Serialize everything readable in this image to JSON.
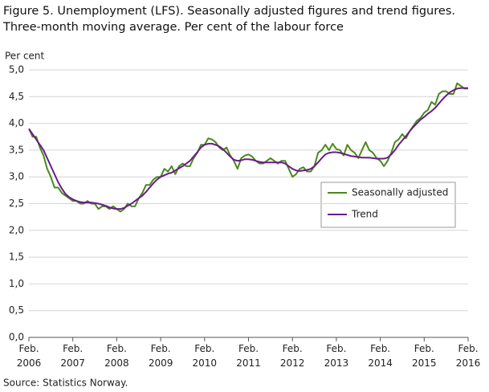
{
  "chart_data": {
    "type": "line",
    "title": [
      "Figure 5. Unemployment (LFS). Seasonally adjusted figures and trend figures.",
      "Three-month moving average. Per cent of the labour force"
    ],
    "y_label": "Per cent",
    "source": "Source: Statistics Norway.",
    "categories": [
      "Feb. 2006",
      null,
      null,
      null,
      null,
      null,
      null,
      null,
      null,
      null,
      null,
      null,
      "Feb. 2007",
      null,
      null,
      null,
      null,
      null,
      null,
      null,
      null,
      null,
      null,
      null,
      "Feb. 2008",
      null,
      null,
      null,
      null,
      null,
      null,
      null,
      null,
      null,
      null,
      null,
      "Feb. 2009",
      null,
      null,
      null,
      null,
      null,
      null,
      null,
      null,
      null,
      null,
      null,
      "Feb. 2010",
      null,
      null,
      null,
      null,
      null,
      null,
      null,
      null,
      null,
      null,
      null,
      "Feb. 2011",
      null,
      null,
      null,
      null,
      null,
      null,
      null,
      null,
      null,
      null,
      null,
      "Feb. 2012",
      null,
      null,
      null,
      null,
      null,
      null,
      null,
      null,
      null,
      null,
      null,
      "Feb. 2013",
      null,
      null,
      null,
      null,
      null,
      null,
      null,
      null,
      null,
      null,
      null,
      "Feb. 2014",
      null,
      null,
      null,
      null,
      null,
      null,
      null,
      null,
      null,
      null,
      null,
      "Feb. 2015",
      null,
      null,
      null,
      null,
      null,
      null,
      null,
      null,
      null,
      null,
      null,
      "Feb. 2016"
    ],
    "series": [
      {
        "name": "Seasonally adjusted",
        "color": "#4a8a1c",
        "values": [
          3.9,
          3.75,
          3.75,
          3.55,
          3.4,
          3.15,
          3.0,
          2.8,
          2.8,
          2.7,
          2.65,
          2.6,
          2.55,
          2.55,
          2.5,
          2.5,
          2.55,
          2.5,
          2.5,
          2.4,
          2.45,
          2.45,
          2.4,
          2.45,
          2.4,
          2.35,
          2.4,
          2.5,
          2.45,
          2.45,
          2.6,
          2.7,
          2.85,
          2.85,
          2.95,
          3.0,
          3.0,
          3.15,
          3.1,
          3.2,
          3.05,
          3.2,
          3.25,
          3.2,
          3.2,
          3.35,
          3.45,
          3.6,
          3.6,
          3.72,
          3.7,
          3.65,
          3.55,
          3.5,
          3.55,
          3.4,
          3.3,
          3.15,
          3.35,
          3.4,
          3.42,
          3.38,
          3.3,
          3.25,
          3.25,
          3.3,
          3.35,
          3.3,
          3.25,
          3.3,
          3.3,
          3.15,
          3.0,
          3.05,
          3.15,
          3.18,
          3.1,
          3.1,
          3.2,
          3.45,
          3.5,
          3.6,
          3.5,
          3.62,
          3.52,
          3.5,
          3.4,
          3.6,
          3.5,
          3.45,
          3.35,
          3.5,
          3.65,
          3.5,
          3.45,
          3.35,
          3.3,
          3.2,
          3.3,
          3.45,
          3.65,
          3.7,
          3.8,
          3.72,
          3.85,
          3.95,
          4.05,
          4.1,
          4.2,
          4.25,
          4.4,
          4.35,
          4.55,
          4.6,
          4.6,
          4.55,
          4.55,
          4.75,
          4.7,
          4.65,
          4.65
        ]
      },
      {
        "name": "Trend",
        "color": "#6a1b8a",
        "values": [
          3.9,
          3.8,
          3.7,
          3.6,
          3.5,
          3.35,
          3.2,
          3.05,
          2.9,
          2.78,
          2.68,
          2.62,
          2.58,
          2.55,
          2.53,
          2.52,
          2.52,
          2.52,
          2.51,
          2.5,
          2.48,
          2.46,
          2.43,
          2.41,
          2.4,
          2.4,
          2.42,
          2.46,
          2.5,
          2.55,
          2.6,
          2.65,
          2.72,
          2.8,
          2.88,
          2.95,
          3.0,
          3.03,
          3.06,
          3.08,
          3.12,
          3.16,
          3.2,
          3.25,
          3.3,
          3.38,
          3.46,
          3.55,
          3.6,
          3.62,
          3.62,
          3.6,
          3.57,
          3.52,
          3.45,
          3.38,
          3.32,
          3.3,
          3.31,
          3.33,
          3.33,
          3.32,
          3.3,
          3.28,
          3.27,
          3.27,
          3.27,
          3.27,
          3.27,
          3.27,
          3.25,
          3.2,
          3.15,
          3.12,
          3.11,
          3.12,
          3.13,
          3.15,
          3.2,
          3.27,
          3.35,
          3.42,
          3.45,
          3.46,
          3.46,
          3.45,
          3.43,
          3.41,
          3.39,
          3.38,
          3.37,
          3.36,
          3.36,
          3.36,
          3.35,
          3.34,
          3.34,
          3.34,
          3.36,
          3.42,
          3.5,
          3.6,
          3.68,
          3.76,
          3.85,
          3.93,
          4.0,
          4.07,
          4.12,
          4.18,
          4.23,
          4.29,
          4.37,
          4.45,
          4.52,
          4.58,
          4.62,
          4.65,
          4.66,
          4.66,
          4.66
        ]
      }
    ],
    "ylim": [
      0,
      5
    ],
    "yticks": [
      {
        "value": 0,
        "label": "0,0"
      },
      {
        "value": 0.5,
        "label": "0,5"
      },
      {
        "value": 1,
        "label": "1,0"
      },
      {
        "value": 1.5,
        "label": "1,5"
      },
      {
        "value": 2,
        "label": "2,0"
      },
      {
        "value": 2.5,
        "label": "2,5"
      },
      {
        "value": 3,
        "label": "3,0"
      },
      {
        "value": 3.5,
        "label": "3,5"
      },
      {
        "value": 4,
        "label": "4,0"
      },
      {
        "value": 4.5,
        "label": "4,5"
      },
      {
        "value": 5,
        "label": "5,0"
      }
    ],
    "grid": true
  }
}
